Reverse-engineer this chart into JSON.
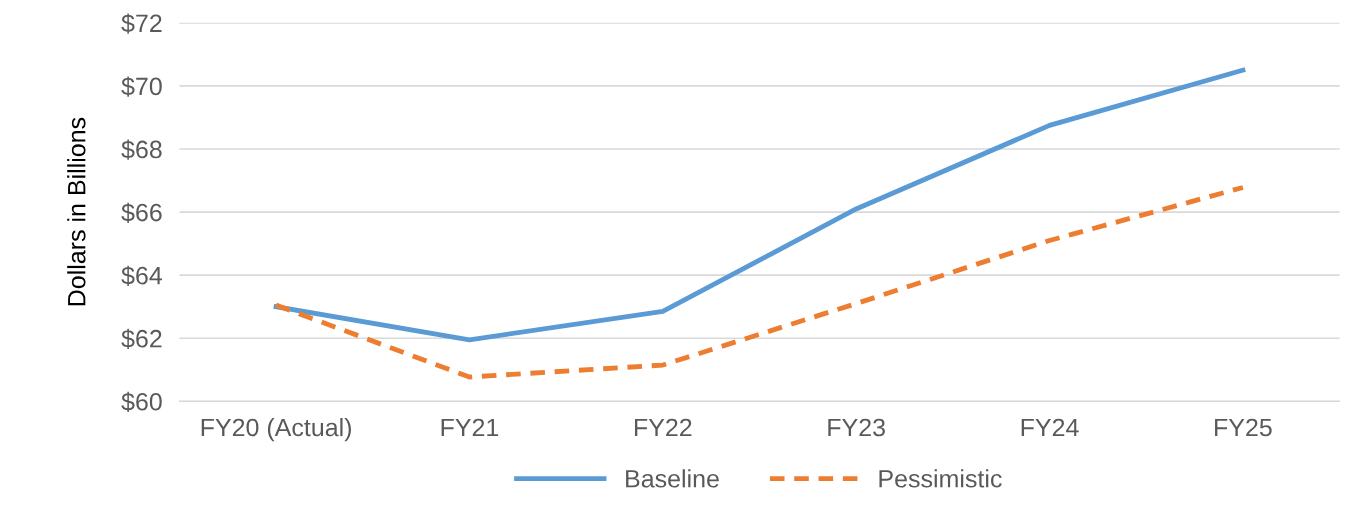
{
  "chart_data": {
    "type": "line",
    "ylabel": "Dollars in Billions",
    "categories": [
      "FY20 (Actual)",
      "FY21",
      "FY22",
      "FY23",
      "FY24",
      "FY25"
    ],
    "series": [
      {
        "name": "Baseline",
        "color": "#5b9bd5",
        "line_style": "solid",
        "values": [
          63.0,
          61.95,
          62.85,
          66.1,
          68.75,
          70.5
        ]
      },
      {
        "name": "Pessimistic",
        "color": "#ed7d31",
        "line_style": "dashed",
        "values": [
          63.05,
          60.77,
          61.15,
          63.1,
          65.1,
          66.78
        ]
      }
    ],
    "ylim": [
      60,
      72
    ],
    "yticks": [
      {
        "value": 60,
        "label": "$60"
      },
      {
        "value": 62,
        "label": "$62"
      },
      {
        "value": 64,
        "label": "$64"
      },
      {
        "value": 66,
        "label": "$66"
      },
      {
        "value": 68,
        "label": "$68"
      },
      {
        "value": 70,
        "label": "$70"
      },
      {
        "value": 72,
        "label": "$72"
      }
    ],
    "grid": "y",
    "legend": "bottom",
    "marker": "none"
  }
}
